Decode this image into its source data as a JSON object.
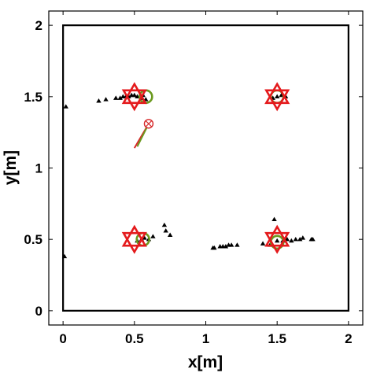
{
  "chart_data": {
    "type": "scatter",
    "title": "",
    "xlabel": "x[m]",
    "ylabel": "y[m]",
    "xlim": [
      -0.1,
      2.1
    ],
    "ylim": [
      -0.1,
      2.1
    ],
    "xticks": [
      0,
      0.5,
      1,
      1.5,
      2
    ],
    "yticks": [
      0,
      0.5,
      1,
      1.5,
      2
    ],
    "xtick_labels": [
      "0",
      "0.5",
      "1",
      "1.5",
      "2"
    ],
    "ytick_labels": [
      "0",
      "0.5",
      "1",
      "1.5",
      "2"
    ],
    "grid": false,
    "legend": "none",
    "boundary": {
      "x": [
        0,
        2
      ],
      "y": [
        0,
        2
      ],
      "color": "#000000"
    },
    "series": [
      {
        "kind": "targets",
        "marker": "hexagram",
        "color": "#e41a1c",
        "points": [
          [
            0.5,
            1.5
          ],
          [
            1.5,
            1.5
          ],
          [
            0.5,
            0.5
          ],
          [
            1.5,
            0.5
          ]
        ]
      },
      {
        "kind": "estimates",
        "marker": "circle",
        "color": "#6b9a1f",
        "points": [
          [
            0.58,
            1.5
          ],
          [
            1.5,
            1.5
          ],
          [
            0.56,
            0.5
          ],
          [
            1.5,
            0.48
          ]
        ]
      },
      {
        "kind": "agent",
        "marker": "circle-x",
        "color": "#d62728",
        "position": [
          0.6,
          1.31
        ],
        "heading_red": [
          [
            0.5,
            1.14
          ],
          [
            0.6,
            1.31
          ]
        ],
        "heading_green": [
          [
            0.52,
            1.15
          ],
          [
            0.6,
            1.31
          ]
        ],
        "heading_green_color": "#6b9a1f"
      },
      {
        "kind": "observations",
        "marker": "triangle",
        "color": "#000000",
        "points": [
          [
            0.02,
            1.43
          ],
          [
            0.25,
            1.47
          ],
          [
            0.3,
            1.48
          ],
          [
            0.37,
            1.49
          ],
          [
            0.4,
            1.49
          ],
          [
            0.42,
            1.5
          ],
          [
            0.44,
            1.5
          ],
          [
            0.46,
            1.5
          ],
          [
            0.48,
            1.51
          ],
          [
            0.5,
            1.51
          ],
          [
            0.52,
            1.5
          ],
          [
            0.55,
            1.49
          ],
          [
            0.56,
            1.51
          ],
          [
            0.58,
            1.48
          ],
          [
            1.47,
            1.49
          ],
          [
            1.5,
            1.5
          ],
          [
            1.53,
            1.51
          ],
          [
            1.56,
            1.5
          ],
          [
            0.01,
            0.38
          ],
          [
            0.52,
            0.49
          ],
          [
            0.55,
            0.5
          ],
          [
            0.57,
            0.51
          ],
          [
            0.6,
            0.5
          ],
          [
            0.63,
            0.52
          ],
          [
            0.71,
            0.6
          ],
          [
            0.72,
            0.56
          ],
          [
            0.75,
            0.53
          ],
          [
            1.05,
            0.44
          ],
          [
            1.06,
            0.44
          ],
          [
            1.1,
            0.45
          ],
          [
            1.12,
            0.45
          ],
          [
            1.14,
            0.45
          ],
          [
            1.16,
            0.46
          ],
          [
            1.18,
            0.46
          ],
          [
            1.22,
            0.46
          ],
          [
            1.4,
            0.47
          ],
          [
            1.45,
            0.46
          ],
          [
            1.48,
            0.64
          ],
          [
            1.5,
            0.49
          ],
          [
            1.54,
            0.49
          ],
          [
            1.57,
            0.5
          ],
          [
            1.6,
            0.49
          ],
          [
            1.63,
            0.5
          ],
          [
            1.66,
            0.5
          ],
          [
            1.68,
            0.51
          ],
          [
            1.74,
            0.5
          ],
          [
            1.75,
            0.5
          ]
        ]
      }
    ]
  }
}
